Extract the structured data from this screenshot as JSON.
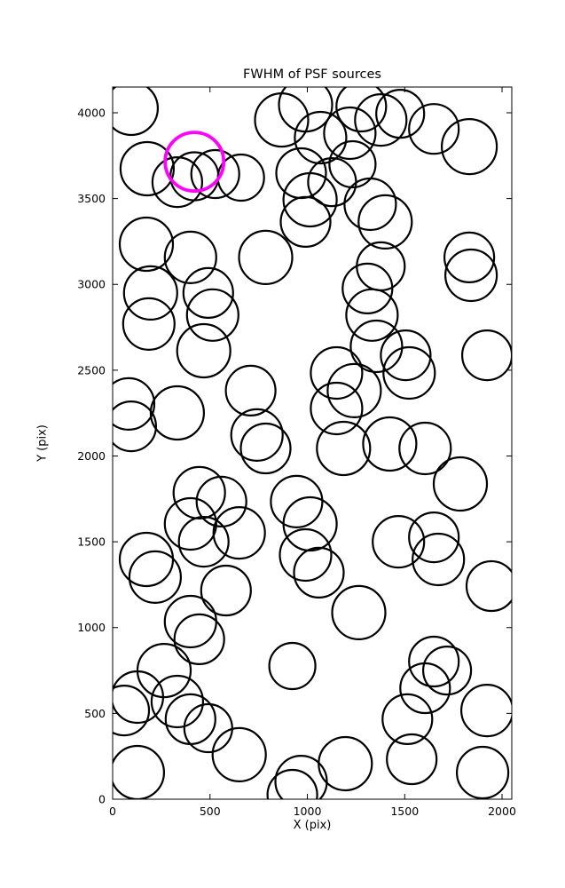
{
  "figure": {
    "title": "FWHM of PSF sources",
    "xlabel": "X (pix)",
    "ylabel": "Y (pix)"
  },
  "colors": {
    "marker_stroke": "#000000",
    "highlight_stroke": "#ff00ff",
    "background": "#ffffff",
    "spine": "#000000"
  },
  "chart_data": {
    "type": "scatter",
    "title": "FWHM of PSF sources",
    "xlabel": "X (pix)",
    "ylabel": "Y (pix)",
    "xlim": [
      0,
      2050
    ],
    "ylim": [
      0,
      4150
    ],
    "xticks": [
      0,
      500,
      1000,
      1500,
      2000
    ],
    "yticks": [
      0,
      500,
      1000,
      1500,
      2000,
      2500,
      3000,
      3500,
      4000
    ],
    "grid": false,
    "legend": "none",
    "marker_style": "open-circle",
    "marker_stroke_width": 2.2,
    "highlight_stroke_width": 3.8,
    "note": "points are [x_pix, y_pix, marker_radius_px]; radius is marker size in screen px (FWHM-scaled)",
    "points": [
      [
        95,
        4026,
        30
      ],
      [
        177,
        3674,
        30
      ],
      [
        332,
        3596,
        28
      ],
      [
        527,
        3643,
        27
      ],
      [
        659,
        3622,
        26
      ],
      [
        420,
        3630,
        27
      ],
      [
        868,
        3958,
        30
      ],
      [
        991,
        4046,
        30
      ],
      [
        1068,
        3855,
        29
      ],
      [
        968,
        3648,
        28
      ],
      [
        1014,
        3493,
        30
      ],
      [
        1127,
        3596,
        27
      ],
      [
        1218,
        3881,
        29
      ],
      [
        1277,
        4036,
        28
      ],
      [
        1377,
        3958,
        29
      ],
      [
        1477,
        3994,
        27
      ],
      [
        1650,
        3906,
        28
      ],
      [
        1832,
        3803,
        31
      ],
      [
        1232,
        3700,
        26
      ],
      [
        1323,
        3467,
        29
      ],
      [
        1400,
        3364,
        30
      ],
      [
        173,
        3234,
        30
      ],
      [
        400,
        3157,
        29
      ],
      [
        786,
        3157,
        30
      ],
      [
        991,
        3364,
        28
      ],
      [
        195,
        2950,
        30
      ],
      [
        186,
        2769,
        29
      ],
      [
        491,
        2950,
        28
      ],
      [
        514,
        2821,
        29
      ],
      [
        1309,
        2976,
        28
      ],
      [
        1332,
        2821,
        29
      ],
      [
        1377,
        3105,
        27
      ],
      [
        1832,
        3157,
        28
      ],
      [
        1841,
        3053,
        29
      ],
      [
        468,
        2613,
        30
      ],
      [
        1355,
        2639,
        29
      ],
      [
        1505,
        2587,
        28
      ],
      [
        1523,
        2484,
        29
      ],
      [
        1923,
        2587,
        28
      ],
      [
        1150,
        2484,
        29
      ],
      [
        1241,
        2381,
        30
      ],
      [
        82,
        2303,
        29
      ],
      [
        95,
        2173,
        28
      ],
      [
        332,
        2251,
        30
      ],
      [
        709,
        2381,
        28
      ],
      [
        741,
        2122,
        29
      ],
      [
        786,
        2044,
        28
      ],
      [
        1150,
        2277,
        29
      ],
      [
        1186,
        2044,
        30
      ],
      [
        1423,
        2070,
        30
      ],
      [
        1605,
        2044,
        29
      ],
      [
        1786,
        1837,
        30
      ],
      [
        445,
        1786,
        29
      ],
      [
        559,
        1734,
        28
      ],
      [
        945,
        1734,
        29
      ],
      [
        1014,
        1604,
        30
      ],
      [
        400,
        1604,
        29
      ],
      [
        468,
        1500,
        28
      ],
      [
        650,
        1552,
        29
      ],
      [
        173,
        1397,
        30
      ],
      [
        218,
        1294,
        29
      ],
      [
        582,
        1216,
        28
      ],
      [
        991,
        1423,
        29
      ],
      [
        1059,
        1320,
        28
      ],
      [
        1468,
        1500,
        29
      ],
      [
        1650,
        1526,
        28
      ],
      [
        1673,
        1397,
        29
      ],
      [
        1945,
        1242,
        28
      ],
      [
        1264,
        1087,
        30
      ],
      [
        400,
        1035,
        29
      ],
      [
        445,
        932,
        28
      ],
      [
        264,
        750,
        30
      ],
      [
        923,
        776,
        26
      ],
      [
        1650,
        802,
        28
      ],
      [
        1718,
        750,
        27
      ],
      [
        1605,
        647,
        28
      ],
      [
        127,
        595,
        29
      ],
      [
        59,
        517,
        28
      ],
      [
        332,
        569,
        29
      ],
      [
        400,
        466,
        28
      ],
      [
        491,
        414,
        27
      ],
      [
        1923,
        517,
        29
      ],
      [
        1514,
        466,
        28
      ],
      [
        650,
        259,
        30
      ],
      [
        968,
        103,
        29
      ],
      [
        1195,
        207,
        30
      ],
      [
        1536,
        233,
        28
      ],
      [
        127,
        155,
        30
      ],
      [
        1900,
        155,
        29
      ],
      [
        923,
        26,
        28
      ]
    ],
    "highlight": {
      "x": 420,
      "y": 3715,
      "r": 33
    }
  }
}
